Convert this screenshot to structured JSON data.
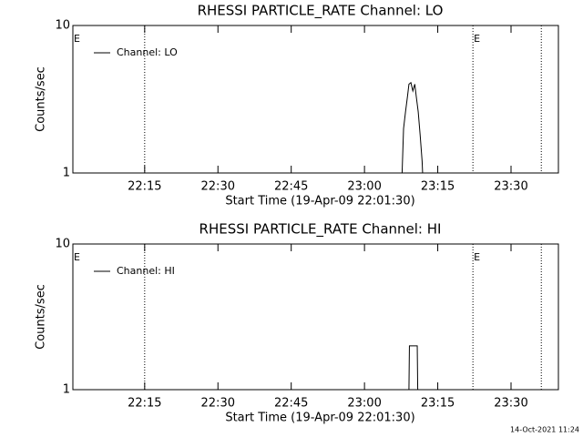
{
  "chart_data": [
    {
      "type": "line",
      "title": "RHESSI PARTICLE_RATE Channel: LO",
      "xlabel": "Start Time (19-Apr-09 22:01:30)",
      "ylabel": "Counts/sec",
      "log_y": true,
      "xlim": [
        1320.3,
        1419.7
      ],
      "ylim": [
        1,
        10
      ],
      "yticks": [
        1,
        10
      ],
      "xticks": [
        {
          "value": 1335,
          "label": "22:15"
        },
        {
          "value": 1350,
          "label": "22:30"
        },
        {
          "value": 1365,
          "label": "22:45"
        },
        {
          "value": 1380,
          "label": "23:00"
        },
        {
          "value": 1395,
          "label": "23:15"
        },
        {
          "value": 1410,
          "label": "23:30"
        }
      ],
      "vlines": [
        1335,
        1402.2,
        1416.2
      ],
      "annotations": [
        {
          "x": 1320.3,
          "text": "E"
        },
        {
          "x": 1402.2,
          "text": "E"
        }
      ],
      "legend": "top-left",
      "series": [
        {
          "name": "Channel: LO",
          "color": "#000000",
          "x": [
            1387.7,
            1388.0,
            1388.4,
            1388.8,
            1389.1,
            1389.5,
            1389.9,
            1390.3,
            1390.6,
            1391.0,
            1391.4,
            1391.8,
            1391.9
          ],
          "values": [
            1,
            2.0,
            2.6,
            3.3,
            4.0,
            4.1,
            3.6,
            4.0,
            3.3,
            2.6,
            1.8,
            1.2,
            1
          ]
        }
      ]
    },
    {
      "type": "line",
      "title": "RHESSI PARTICLE_RATE Channel: HI",
      "xlabel": "Start Time (19-Apr-09 22:01:30)",
      "ylabel": "Counts/sec",
      "log_y": true,
      "xlim": [
        1320.3,
        1419.7
      ],
      "ylim": [
        1,
        10
      ],
      "yticks": [
        1,
        10
      ],
      "xticks": [
        {
          "value": 1335,
          "label": "22:15"
        },
        {
          "value": 1350,
          "label": "22:30"
        },
        {
          "value": 1365,
          "label": "22:45"
        },
        {
          "value": 1380,
          "label": "23:00"
        },
        {
          "value": 1395,
          "label": "23:15"
        },
        {
          "value": 1410,
          "label": "23:30"
        }
      ],
      "vlines": [
        1335,
        1402.2,
        1416.2
      ],
      "annotations": [
        {
          "x": 1320.3,
          "text": "E"
        },
        {
          "x": 1402.2,
          "text": "E"
        }
      ],
      "legend": "top-left",
      "series": [
        {
          "name": "Channel: HI",
          "color": "#000000",
          "x": [
            1389.1,
            1389.2,
            1390.8,
            1390.9
          ],
          "values": [
            1,
            2.0,
            2.0,
            1
          ]
        }
      ]
    }
  ],
  "footer": "14-Oct-2021 11:24"
}
